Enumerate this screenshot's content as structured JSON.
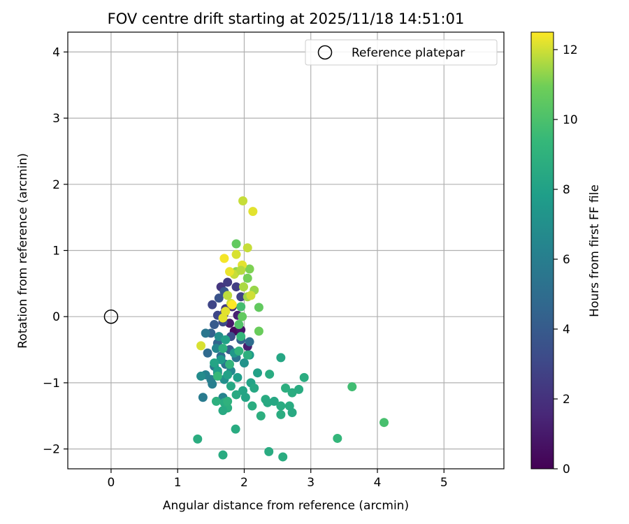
{
  "chart_data": {
    "type": "scatter",
    "title": "FOV centre drift starting at 2025/11/18 14:51:01",
    "xlabel": "Angular distance from reference (arcmin)",
    "ylabel": "Rotation from reference (arcmin)",
    "xlim": [
      -0.65,
      5.9
    ],
    "ylim": [
      -2.3,
      4.3
    ],
    "xticks": [
      0,
      1,
      2,
      3,
      4,
      5
    ],
    "yticks": [
      -2,
      -1,
      0,
      1,
      2,
      3,
      4
    ],
    "grid": true,
    "legend": {
      "position": "top-right",
      "entries": [
        "Reference platepar"
      ]
    },
    "reference": {
      "x": 0,
      "y": 0,
      "label": "Reference platepar"
    },
    "colorbar": {
      "label": "Hours from first FF file",
      "colormap": "viridis",
      "range": [
        0,
        12.5
      ],
      "ticks": [
        0,
        2,
        4,
        6,
        8,
        10,
        12
      ]
    },
    "points": [
      [
        1.85,
        -0.22,
        0.4
      ],
      [
        1.95,
        -0.2,
        0.8
      ],
      [
        1.78,
        -0.1,
        1.0
      ],
      [
        1.9,
        0.02,
        1.3
      ],
      [
        1.7,
        0.05,
        1.6
      ],
      [
        1.82,
        0.15,
        1.8
      ],
      [
        2.05,
        -0.45,
        1.2
      ],
      [
        1.65,
        0.45,
        2.2
      ],
      [
        1.75,
        0.52,
        2.5
      ],
      [
        1.88,
        0.45,
        2.6
      ],
      [
        1.95,
        0.3,
        2.8
      ],
      [
        1.72,
        0.12,
        2.4
      ],
      [
        1.6,
        0.02,
        3.0
      ],
      [
        1.52,
        0.18,
        2.9
      ],
      [
        1.68,
        -0.08,
        3.2
      ],
      [
        1.8,
        -0.3,
        3.4
      ],
      [
        1.62,
        0.28,
        3.6
      ],
      [
        1.7,
        0.38,
        3.8
      ],
      [
        1.55,
        -0.12,
        4.0
      ],
      [
        1.78,
        -0.5,
        4.2
      ],
      [
        1.5,
        -0.25,
        4.4
      ],
      [
        1.6,
        -0.4,
        4.6
      ],
      [
        1.45,
        -0.55,
        4.8
      ],
      [
        1.65,
        -0.6,
        5.0
      ],
      [
        1.72,
        -0.72,
        5.2
      ],
      [
        1.88,
        -0.62,
        5.4
      ],
      [
        1.55,
        -0.75,
        5.6
      ],
      [
        1.6,
        -0.85,
        5.8
      ],
      [
        1.5,
        -0.95,
        6.0
      ],
      [
        1.42,
        -0.88,
        6.2
      ],
      [
        1.52,
        -1.02,
        6.0
      ],
      [
        1.38,
        -1.22,
        5.8
      ],
      [
        1.68,
        -1.22,
        6.3
      ],
      [
        1.95,
        -0.35,
        4.5
      ],
      [
        2.08,
        -0.38,
        5.0
      ],
      [
        1.42,
        -0.25,
        5.5
      ],
      [
        1.58,
        -0.48,
        6.4
      ],
      [
        1.8,
        -0.82,
        6.6
      ],
      [
        1.35,
        -0.9,
        6.8
      ],
      [
        1.7,
        -0.95,
        7.0
      ],
      [
        2.0,
        -0.7,
        7.2
      ],
      [
        1.85,
        -0.55,
        7.4
      ],
      [
        1.62,
        -0.3,
        7.0
      ],
      [
        1.65,
        -0.65,
        7.6
      ],
      [
        1.9,
        -0.92,
        7.8
      ],
      [
        1.75,
        -0.88,
        8.0
      ],
      [
        1.55,
        -0.7,
        8.2
      ],
      [
        2.08,
        -0.58,
        7.5
      ],
      [
        2.2,
        -0.85,
        8.0
      ],
      [
        2.1,
        -1.0,
        8.1
      ],
      [
        1.98,
        -1.12,
        8.2
      ],
      [
        1.8,
        -1.05,
        8.4
      ],
      [
        2.15,
        -1.08,
        8.4
      ],
      [
        1.6,
        -0.82,
        7.9
      ],
      [
        1.7,
        -1.3,
        8.6
      ],
      [
        1.75,
        -1.38,
        8.8
      ],
      [
        1.68,
        -1.42,
        8.5
      ],
      [
        1.88,
        -1.18,
        8.5
      ],
      [
        2.02,
        -1.22,
        8.2
      ],
      [
        2.12,
        -1.35,
        8.7
      ],
      [
        2.32,
        -1.25,
        8.6
      ],
      [
        2.35,
        -1.3,
        8.5
      ],
      [
        2.45,
        -1.28,
        8.4
      ],
      [
        2.55,
        -1.35,
        8.6
      ],
      [
        2.55,
        -1.48,
        8.7
      ],
      [
        2.25,
        -1.5,
        8.8
      ],
      [
        2.62,
        -1.08,
        8.8
      ],
      [
        2.72,
        -1.15,
        8.7
      ],
      [
        2.82,
        -1.1,
        8.6
      ],
      [
        2.9,
        -0.92,
        8.7
      ],
      [
        2.68,
        -1.35,
        8.6
      ],
      [
        2.72,
        -1.45,
        8.5
      ],
      [
        2.55,
        -0.62,
        8.3
      ],
      [
        2.38,
        -0.87,
        8.6
      ],
      [
        1.58,
        -1.28,
        8.9
      ],
      [
        1.75,
        -1.28,
        9.0
      ],
      [
        1.87,
        -1.7,
        8.6
      ],
      [
        1.3,
        -1.85,
        8.7
      ],
      [
        1.68,
        -2.09,
        8.6
      ],
      [
        2.37,
        -2.04,
        8.6
      ],
      [
        2.58,
        -2.12,
        8.7
      ],
      [
        3.4,
        -1.84,
        9.3
      ],
      [
        3.62,
        -1.06,
        9.7
      ],
      [
        4.1,
        -1.6,
        9.9
      ],
      [
        1.72,
        -0.35,
        8.0
      ],
      [
        1.68,
        -0.48,
        8.9
      ],
      [
        1.78,
        -0.72,
        9.2
      ],
      [
        1.92,
        -0.52,
        9.1
      ],
      [
        2.05,
        -0.58,
        8.9
      ],
      [
        1.95,
        -0.3,
        9.3
      ],
      [
        1.6,
        -0.9,
        9.4
      ],
      [
        1.95,
        0.15,
        9.8
      ],
      [
        1.97,
        0.0,
        10.6
      ],
      [
        1.92,
        -0.12,
        10.2
      ],
      [
        2.22,
        -0.22,
        10.8
      ],
      [
        2.22,
        0.14,
        10.6
      ],
      [
        1.88,
        1.1,
        10.6
      ],
      [
        2.05,
        0.58,
        11.0
      ],
      [
        2.08,
        0.72,
        11.1
      ],
      [
        1.88,
        0.68,
        11.3
      ],
      [
        2.15,
        0.4,
        11.4
      ],
      [
        1.99,
        0.45,
        11.6
      ],
      [
        2.05,
        0.3,
        11.5
      ],
      [
        1.75,
        0.32,
        11.8
      ],
      [
        1.8,
        0.2,
        12.0
      ],
      [
        1.72,
        0.08,
        12.2
      ],
      [
        1.68,
        -0.02,
        12.2
      ],
      [
        1.35,
        -0.44,
        12.1
      ],
      [
        1.85,
        0.64,
        11.9
      ],
      [
        1.97,
        0.78,
        12.2
      ],
      [
        1.78,
        0.68,
        12.3
      ],
      [
        1.95,
        0.7,
        11.7
      ],
      [
        2.05,
        1.04,
        11.9
      ],
      [
        1.88,
        0.94,
        12.1
      ],
      [
        1.7,
        0.88,
        12.4
      ],
      [
        2.13,
        1.59,
        12.2
      ],
      [
        1.98,
        1.75,
        11.9
      ],
      [
        2.1,
        0.32,
        12.0
      ],
      [
        1.82,
        0.18,
        12.5
      ]
    ]
  }
}
